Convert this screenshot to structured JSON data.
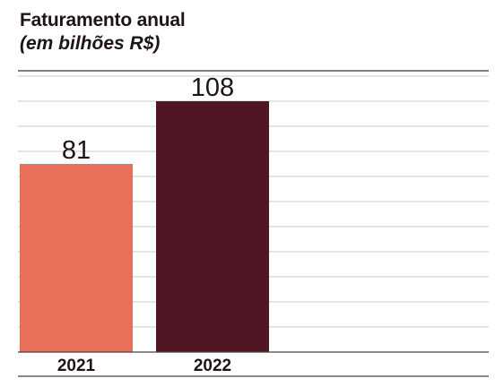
{
  "header": {
    "title": "Faturamento anual",
    "subtitle": "(em bilhões R$)"
  },
  "colors": {
    "bar_2021": "#e8705a",
    "bar_2022": "#501624",
    "gridline": "#c9c9c9",
    "axis": "#333333",
    "text": "#1e1416"
  },
  "chart_data": {
    "type": "bar",
    "title": "Faturamento anual",
    "subtitle": "(em bilhões R$)",
    "categories": [
      "2021",
      "2022"
    ],
    "values": [
      81,
      108
    ],
    "value_labels": [
      "81",
      "108"
    ],
    "xlabel": "",
    "ylabel": "",
    "ylim": [
      0,
      108
    ],
    "grid": true,
    "legend": "none"
  }
}
